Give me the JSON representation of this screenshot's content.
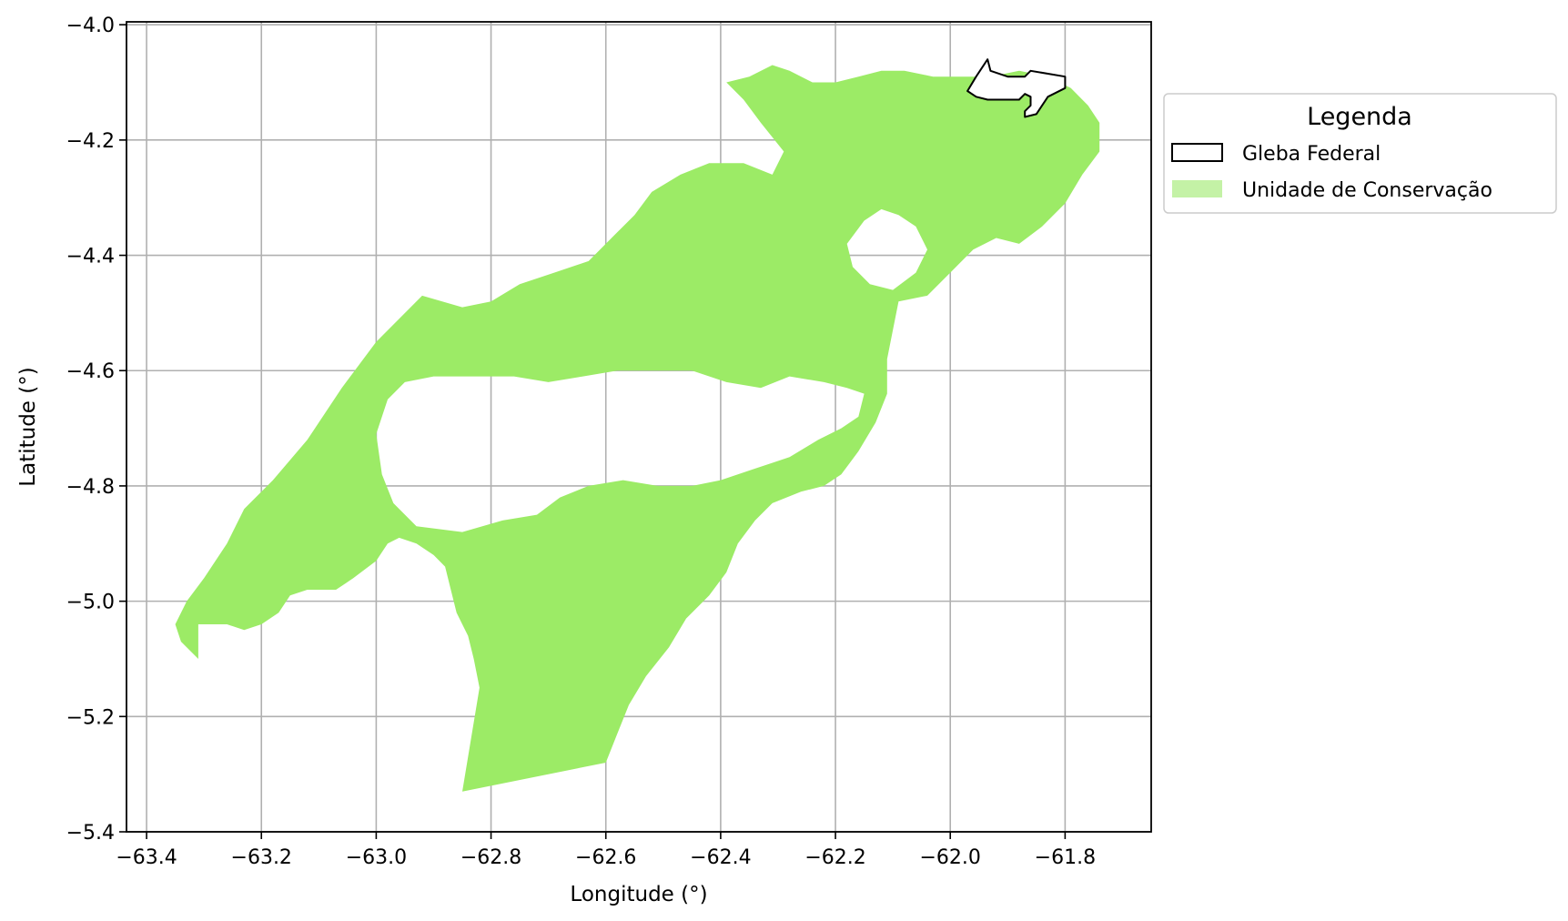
{
  "chart_data": {
    "type": "map",
    "xlabel": "Longitude (°)",
    "ylabel": "Latitude (°)",
    "xlim": [
      -63.435,
      -61.65
    ],
    "ylim": [
      -5.4,
      -3.995
    ],
    "grid": true,
    "x_ticks": [
      -63.4,
      -63.2,
      -63.0,
      -62.8,
      -62.6,
      -62.4,
      -62.2,
      -62.0,
      -61.8
    ],
    "y_ticks": [
      -4.0,
      -4.2,
      -4.4,
      -4.6,
      -4.8,
      -5.0,
      -5.2,
      -5.4
    ],
    "x_tick_labels": [
      "−63.4",
      "−63.2",
      "−63.0",
      "−62.8",
      "−62.6",
      "−62.4",
      "−62.2",
      "−62.0",
      "−61.8"
    ],
    "y_tick_labels": [
      "−4.0",
      "−4.2",
      "−4.4",
      "−4.6",
      "−4.8",
      "−5.0",
      "−5.2",
      "−5.4"
    ],
    "legend": {
      "title": "Legenda",
      "placement": "outside upper right",
      "entries": [
        {
          "label": "Gleba Federal",
          "style": "outline",
          "edge_color": "#000000",
          "fill_color": "#ffffff"
        },
        {
          "label": "Unidade de Conservação",
          "style": "filled",
          "fill_color": "#9ceb66"
        }
      ]
    },
    "layers": [
      {
        "name": "Unidade de Conservação",
        "fill": "#9ceb66",
        "rings": [
          [
            [
              -63.34,
              -5.07
            ],
            [
              -63.31,
              -5.1
            ],
            [
              -63.31,
              -5.04
            ],
            [
              -63.29,
              -5.04
            ],
            [
              -63.26,
              -5.04
            ],
            [
              -63.23,
              -5.05
            ],
            [
              -63.2,
              -5.04
            ],
            [
              -63.17,
              -5.02
            ],
            [
              -63.15,
              -4.99
            ],
            [
              -63.12,
              -4.98
            ],
            [
              -63.07,
              -4.98
            ],
            [
              -63.04,
              -4.96
            ],
            [
              -63.0,
              -4.93
            ],
            [
              -62.98,
              -4.9
            ],
            [
              -62.96,
              -4.89
            ],
            [
              -62.93,
              -4.9
            ],
            [
              -62.9,
              -4.92
            ],
            [
              -62.88,
              -4.94
            ],
            [
              -62.87,
              -4.98
            ],
            [
              -62.86,
              -5.02
            ],
            [
              -62.84,
              -5.06
            ],
            [
              -62.83,
              -5.1
            ],
            [
              -62.82,
              -5.15
            ],
            [
              -62.85,
              -5.33
            ],
            [
              -62.6,
              -5.28
            ],
            [
              -62.58,
              -5.23
            ],
            [
              -62.56,
              -5.18
            ],
            [
              -62.53,
              -5.13
            ],
            [
              -62.49,
              -5.08
            ],
            [
              -62.46,
              -5.03
            ],
            [
              -62.42,
              -4.99
            ],
            [
              -62.39,
              -4.95
            ],
            [
              -62.37,
              -4.9
            ],
            [
              -62.34,
              -4.86
            ],
            [
              -62.31,
              -4.83
            ],
            [
              -62.26,
              -4.81
            ],
            [
              -62.22,
              -4.8
            ],
            [
              -62.19,
              -4.78
            ],
            [
              -62.16,
              -4.74
            ],
            [
              -62.13,
              -4.69
            ],
            [
              -62.11,
              -4.64
            ],
            [
              -62.11,
              -4.58
            ],
            [
              -62.1,
              -4.53
            ],
            [
              -62.09,
              -4.48
            ],
            [
              -62.04,
              -4.47
            ],
            [
              -62.0,
              -4.43
            ],
            [
              -61.96,
              -4.39
            ],
            [
              -61.92,
              -4.37
            ],
            [
              -61.88,
              -4.38
            ],
            [
              -61.84,
              -4.35
            ],
            [
              -61.8,
              -4.31
            ],
            [
              -61.77,
              -4.26
            ],
            [
              -61.74,
              -4.22
            ],
            [
              -61.74,
              -4.17
            ],
            [
              -61.76,
              -4.14
            ],
            [
              -61.79,
              -4.11
            ],
            [
              -61.83,
              -4.09
            ],
            [
              -61.88,
              -4.08
            ],
            [
              -61.93,
              -4.09
            ],
            [
              -61.98,
              -4.09
            ],
            [
              -62.03,
              -4.09
            ],
            [
              -62.08,
              -4.08
            ],
            [
              -62.12,
              -4.08
            ],
            [
              -62.16,
              -4.09
            ],
            [
              -62.2,
              -4.1
            ],
            [
              -62.24,
              -4.1
            ],
            [
              -62.28,
              -4.08
            ],
            [
              -62.31,
              -4.07
            ],
            [
              -62.35,
              -4.09
            ],
            [
              -62.39,
              -4.1
            ],
            [
              -62.36,
              -4.13
            ],
            [
              -62.33,
              -4.17
            ],
            [
              -62.29,
              -4.22
            ],
            [
              -62.31,
              -4.26
            ],
            [
              -62.36,
              -4.24
            ],
            [
              -62.42,
              -4.24
            ],
            [
              -62.47,
              -4.26
            ],
            [
              -62.52,
              -4.29
            ],
            [
              -62.55,
              -4.33
            ],
            [
              -62.59,
              -4.37
            ],
            [
              -62.63,
              -4.41
            ],
            [
              -62.69,
              -4.43
            ],
            [
              -62.75,
              -4.45
            ],
            [
              -62.8,
              -4.48
            ],
            [
              -62.85,
              -4.49
            ],
            [
              -62.92,
              -4.47
            ],
            [
              -63.0,
              -4.55
            ],
            [
              -63.06,
              -4.63
            ],
            [
              -63.12,
              -4.72
            ],
            [
              -63.18,
              -4.79
            ],
            [
              -63.23,
              -4.84
            ],
            [
              -63.26,
              -4.9
            ],
            [
              -63.3,
              -4.96
            ],
            [
              -63.33,
              -5.0
            ],
            [
              -63.35,
              -5.04
            ]
          ],
          [
            [
              -62.98,
              -4.65
            ],
            [
              -63.0,
              -4.71
            ],
            [
              -62.99,
              -4.78
            ],
            [
              -62.97,
              -4.83
            ],
            [
              -62.93,
              -4.87
            ],
            [
              -62.85,
              -4.88
            ],
            [
              -62.78,
              -4.86
            ],
            [
              -62.72,
              -4.85
            ],
            [
              -62.68,
              -4.82
            ],
            [
              -62.63,
              -4.8
            ],
            [
              -62.57,
              -4.79
            ],
            [
              -62.51,
              -4.8
            ],
            [
              -62.45,
              -4.8
            ],
            [
              -62.4,
              -4.79
            ],
            [
              -62.34,
              -4.77
            ],
            [
              -62.28,
              -4.75
            ],
            [
              -62.23,
              -4.72
            ],
            [
              -62.19,
              -4.7
            ],
            [
              -62.16,
              -4.68
            ],
            [
              -62.15,
              -4.64
            ],
            [
              -62.18,
              -4.63
            ],
            [
              -62.22,
              -4.62
            ],
            [
              -62.28,
              -4.61
            ],
            [
              -62.33,
              -4.63
            ],
            [
              -62.39,
              -4.62
            ],
            [
              -62.45,
              -4.6
            ],
            [
              -62.52,
              -4.6
            ],
            [
              -62.58,
              -4.6
            ],
            [
              -62.64,
              -4.61
            ],
            [
              -62.7,
              -4.62
            ],
            [
              -62.76,
              -4.61
            ],
            [
              -62.83,
              -4.61
            ],
            [
              -62.9,
              -4.61
            ],
            [
              -62.95,
              -4.62
            ]
          ],
          [
            [
              -62.15,
              -4.34
            ],
            [
              -62.12,
              -4.32
            ],
            [
              -62.09,
              -4.33
            ],
            [
              -62.06,
              -4.35
            ],
            [
              -62.04,
              -4.39
            ],
            [
              -62.06,
              -4.43
            ],
            [
              -62.1,
              -4.46
            ],
            [
              -62.14,
              -4.45
            ],
            [
              -62.17,
              -4.42
            ],
            [
              -62.18,
              -4.38
            ]
          ]
        ]
      },
      {
        "name": "Gleba Federal",
        "fill": "#ffffff",
        "stroke": "#000000",
        "rings": [
          [
            [
              -61.97,
              -4.115
            ],
            [
              -61.955,
              -4.09
            ],
            [
              -61.935,
              -4.06
            ],
            [
              -61.93,
              -4.08
            ],
            [
              -61.9,
              -4.09
            ],
            [
              -61.87,
              -4.09
            ],
            [
              -61.86,
              -4.08
            ],
            [
              -61.8,
              -4.09
            ],
            [
              -61.8,
              -4.11
            ],
            [
              -61.83,
              -4.125
            ],
            [
              -61.85,
              -4.155
            ],
            [
              -61.87,
              -4.16
            ],
            [
              -61.87,
              -4.15
            ],
            [
              -61.86,
              -4.14
            ],
            [
              -61.86,
              -4.125
            ],
            [
              -61.87,
              -4.12
            ],
            [
              -61.88,
              -4.13
            ],
            [
              -61.91,
              -4.13
            ],
            [
              -61.935,
              -4.13
            ],
            [
              -61.955,
              -4.125
            ]
          ]
        ]
      }
    ]
  }
}
